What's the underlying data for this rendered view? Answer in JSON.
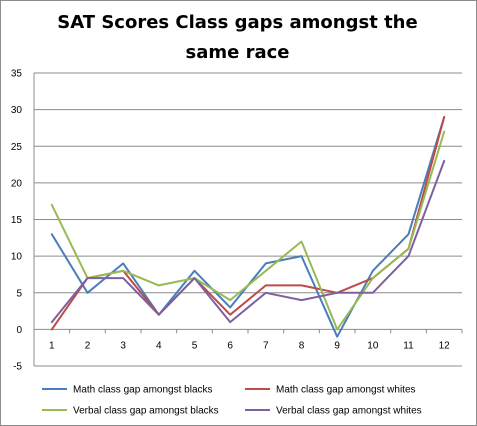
{
  "chart_data": {
    "type": "line",
    "title": "SAT Scores Class gaps amongst the same race",
    "xlabel": "",
    "ylabel": "",
    "categories": [
      "1",
      "2",
      "3",
      "4",
      "5",
      "6",
      "7",
      "8",
      "9",
      "10",
      "11",
      "12"
    ],
    "ylim": [
      -5,
      35
    ],
    "yticks": [
      "-5",
      "0",
      "5",
      "10",
      "15",
      "20",
      "25",
      "30",
      "35"
    ],
    "grid": true,
    "legend_position": "bottom",
    "series": [
      {
        "name": "Math class gap amongst blacks",
        "color": "#4a7ebb",
        "values": [
          13,
          5,
          9,
          2,
          8,
          3,
          9,
          10,
          -1,
          8,
          13,
          29
        ]
      },
      {
        "name": "Math class gap amongst whites",
        "color": "#be4b48",
        "values": [
          0,
          7,
          8,
          2,
          7,
          2,
          6,
          6,
          5,
          7,
          11,
          29
        ]
      },
      {
        "name": "Verbal class gap amongst blacks",
        "color": "#98b954",
        "values": [
          17,
          7,
          8,
          6,
          7,
          4,
          8,
          12,
          0,
          7,
          11,
          27
        ]
      },
      {
        "name": "Verbal class gap amongst whites",
        "color": "#7d60a0",
        "values": [
          1,
          7,
          7,
          2,
          7,
          1,
          5,
          4,
          5,
          5,
          10,
          23
        ]
      }
    ]
  }
}
